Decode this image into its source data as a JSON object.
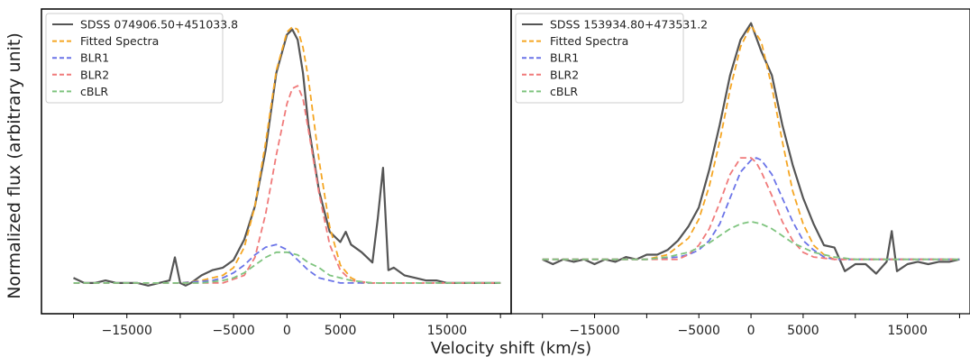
{
  "figure": {
    "ylabel": "Normalized flux (arbitrary unit)",
    "xlabel": "Velocity shift (km/s)"
  },
  "chart_data": [
    {
      "type": "line",
      "xlim": [
        -23000,
        21000
      ],
      "ylim": [
        -0.12,
        1.07
      ],
      "xticks": [
        -20000,
        -15000,
        -10000,
        -5000,
        0,
        5000,
        10000,
        15000,
        20000
      ],
      "xtick_labels": [
        "",
        "−15000",
        "",
        "−5000",
        "0",
        "5000",
        "",
        "15000",
        ""
      ],
      "grid": false,
      "legend_position": "top-left",
      "series": [
        {
          "name": "SDSS 074906.50+451033.8",
          "color": "#555555",
          "style": "solid",
          "x": [
            -20000,
            -19000,
            -18000,
            -17000,
            -16000,
            -15000,
            -14000,
            -13000,
            -12000,
            -11000,
            -10500,
            -10000,
            -9500,
            -9000,
            -8000,
            -7000,
            -6000,
            -5000,
            -4000,
            -3000,
            -2000,
            -1000,
            0,
            500,
            1000,
            1500,
            2000,
            3000,
            4000,
            5000,
            5500,
            6000,
            7000,
            8000,
            8500,
            9000,
            9500,
            10000,
            11000,
            12000,
            13000,
            14000,
            15000,
            16000,
            17000,
            18000,
            19000,
            20000
          ],
          "y": [
            0.02,
            0.0,
            0.0,
            0.01,
            0.0,
            0.0,
            0.0,
            -0.01,
            0.0,
            0.01,
            0.1,
            0.0,
            -0.01,
            0.0,
            0.03,
            0.05,
            0.06,
            0.09,
            0.17,
            0.3,
            0.52,
            0.82,
            0.97,
            0.99,
            0.95,
            0.82,
            0.62,
            0.36,
            0.2,
            0.16,
            0.2,
            0.15,
            0.12,
            0.08,
            0.25,
            0.45,
            0.05,
            0.06,
            0.03,
            0.02,
            0.01,
            0.01,
            0.0,
            0.0,
            0.0,
            0.0,
            0.0,
            0.0
          ]
        },
        {
          "name": "Fitted Spectra",
          "color": "#f5a623",
          "style": "dashed",
          "x": [
            -20000,
            -15000,
            -10000,
            -8000,
            -6000,
            -5000,
            -4000,
            -3000,
            -2000,
            -1000,
            0,
            500,
            1000,
            1500,
            2000,
            3000,
            4000,
            5000,
            6000,
            7000,
            8000,
            10000,
            15000,
            20000
          ],
          "y": [
            0.0,
            0.0,
            0.0,
            0.01,
            0.03,
            0.06,
            0.14,
            0.3,
            0.55,
            0.83,
            0.98,
            1.0,
            0.99,
            0.92,
            0.8,
            0.48,
            0.22,
            0.07,
            0.02,
            0.0,
            0.0,
            0.0,
            0.0,
            0.0
          ]
        },
        {
          "name": "BLR1",
          "color": "#6b74e8",
          "style": "dashed",
          "x": [
            -20000,
            -10000,
            -7000,
            -6000,
            -5000,
            -4000,
            -3000,
            -2000,
            -1000,
            0,
            1000,
            2000,
            3000,
            4000,
            5000,
            6000,
            8000,
            10000,
            20000
          ],
          "y": [
            0.0,
            0.0,
            0.01,
            0.02,
            0.04,
            0.07,
            0.11,
            0.14,
            0.15,
            0.13,
            0.09,
            0.05,
            0.02,
            0.01,
            0.0,
            0.0,
            0.0,
            0.0,
            0.0
          ]
        },
        {
          "name": "BLR2",
          "color": "#f07a7a",
          "style": "dashed",
          "x": [
            -20000,
            -10000,
            -6000,
            -4000,
            -3000,
            -2000,
            -1000,
            0,
            500,
            1000,
            1500,
            2000,
            3000,
            4000,
            5000,
            6000,
            8000,
            10000,
            20000
          ],
          "y": [
            0.0,
            0.0,
            0.0,
            0.03,
            0.1,
            0.27,
            0.5,
            0.7,
            0.76,
            0.77,
            0.72,
            0.6,
            0.35,
            0.15,
            0.05,
            0.01,
            0.0,
            0.0,
            0.0
          ]
        },
        {
          "name": "cBLR",
          "color": "#7fc47f",
          "style": "dashed",
          "x": [
            -20000,
            -10000,
            -8000,
            -6000,
            -5000,
            -4000,
            -3000,
            -2000,
            -1000,
            0,
            1000,
            2000,
            3000,
            4000,
            5000,
            6000,
            8000,
            10000,
            20000
          ],
          "y": [
            0.0,
            0.0,
            0.0,
            0.01,
            0.02,
            0.04,
            0.07,
            0.1,
            0.12,
            0.12,
            0.11,
            0.08,
            0.06,
            0.03,
            0.02,
            0.01,
            0.0,
            0.0,
            0.0
          ]
        }
      ]
    },
    {
      "type": "line",
      "xlim": [
        -23000,
        21000
      ],
      "ylim": [
        -0.23,
        1.06
      ],
      "xticks": [
        -20000,
        -15000,
        -10000,
        -5000,
        0,
        5000,
        10000,
        15000,
        20000
      ],
      "xtick_labels": [
        "",
        "−15000",
        "",
        "−5000",
        "0",
        "5000",
        "",
        "15000",
        ""
      ],
      "grid": false,
      "legend_position": "top-left",
      "series": [
        {
          "name": "SDSS 153934.80+473531.2",
          "color": "#555555",
          "style": "solid",
          "x": [
            -20000,
            -19000,
            -18000,
            -17000,
            -16000,
            -15000,
            -14000,
            -13000,
            -12000,
            -11000,
            -10000,
            -9000,
            -8000,
            -7000,
            -6000,
            -5000,
            -4000,
            -3000,
            -2000,
            -1000,
            0,
            1000,
            2000,
            3000,
            4000,
            5000,
            6000,
            7000,
            8000,
            9000,
            10000,
            11000,
            12000,
            13000,
            13500,
            14000,
            15000,
            16000,
            17000,
            18000,
            19000,
            20000
          ],
          "y": [
            0.0,
            -0.02,
            0.0,
            -0.01,
            0.0,
            -0.02,
            0.0,
            -0.01,
            0.01,
            0.0,
            0.02,
            0.02,
            0.04,
            0.08,
            0.14,
            0.22,
            0.38,
            0.57,
            0.78,
            0.93,
            1.0,
            0.88,
            0.78,
            0.57,
            0.4,
            0.26,
            0.15,
            0.06,
            0.05,
            -0.05,
            -0.02,
            -0.02,
            -0.06,
            -0.01,
            0.12,
            -0.05,
            -0.02,
            -0.01,
            -0.02,
            -0.01,
            -0.01,
            0.0
          ]
        },
        {
          "name": "Fitted Spectra",
          "color": "#f5a623",
          "style": "dashed",
          "x": [
            -20000,
            -15000,
            -10000,
            -8000,
            -6000,
            -5000,
            -4000,
            -3000,
            -2000,
            -1000,
            0,
            1000,
            2000,
            3000,
            4000,
            5000,
            6000,
            7000,
            8000,
            10000,
            15000,
            20000
          ],
          "y": [
            0.0,
            0.0,
            0.0,
            0.02,
            0.09,
            0.17,
            0.31,
            0.5,
            0.72,
            0.9,
            0.99,
            0.92,
            0.73,
            0.5,
            0.29,
            0.15,
            0.06,
            0.02,
            0.0,
            0.0,
            0.0,
            0.0
          ]
        },
        {
          "name": "BLR1",
          "color": "#6b74e8",
          "style": "dashed",
          "x": [
            -20000,
            -10000,
            -7000,
            -6000,
            -5000,
            -4000,
            -3000,
            -2000,
            -1000,
            0,
            500,
            1000,
            2000,
            3000,
            4000,
            5000,
            6000,
            7000,
            8000,
            10000,
            20000
          ],
          "y": [
            0.0,
            0.0,
            0.01,
            0.02,
            0.04,
            0.08,
            0.15,
            0.26,
            0.37,
            0.42,
            0.43,
            0.42,
            0.36,
            0.26,
            0.16,
            0.08,
            0.04,
            0.01,
            0.0,
            0.0,
            0.0
          ]
        },
        {
          "name": "BLR2",
          "color": "#f07a7a",
          "style": "dashed",
          "x": [
            -20000,
            -10000,
            -7000,
            -6000,
            -5000,
            -4000,
            -3000,
            -2000,
            -1000,
            0,
            500,
            1000,
            2000,
            3000,
            4000,
            5000,
            6000,
            8000,
            10000,
            20000
          ],
          "y": [
            0.0,
            0.0,
            0.0,
            0.02,
            0.06,
            0.13,
            0.24,
            0.36,
            0.43,
            0.43,
            0.41,
            0.37,
            0.27,
            0.16,
            0.08,
            0.03,
            0.01,
            0.0,
            0.0,
            0.0
          ]
        },
        {
          "name": "cBLR",
          "color": "#7fc47f",
          "style": "dashed",
          "x": [
            -20000,
            -10000,
            -8000,
            -6000,
            -4000,
            -3000,
            -2000,
            -1000,
            0,
            1000,
            2000,
            3000,
            4000,
            6000,
            8000,
            10000,
            20000
          ],
          "y": [
            0.0,
            0.0,
            0.01,
            0.03,
            0.07,
            0.1,
            0.13,
            0.15,
            0.16,
            0.15,
            0.13,
            0.1,
            0.07,
            0.03,
            0.01,
            0.0,
            0.0
          ]
        }
      ]
    }
  ]
}
